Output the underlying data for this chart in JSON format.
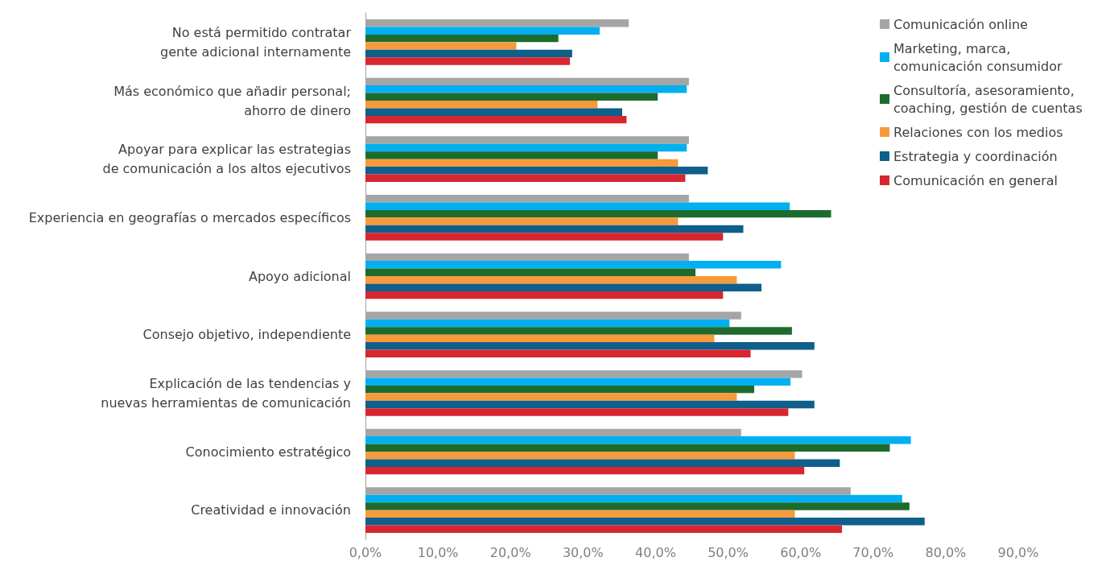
{
  "chart_data": {
    "type": "bar",
    "orientation": "horizontal",
    "categories": [
      "No está permitido contratar\ngente adicional internamente",
      "Más económico que añadir personal;\nahorro de dinero",
      "Apoyar para explicar las estrategias\nde comunicación a los altos ejecutivos",
      "Experiencia en geografías o mercados específicos",
      "Apoyo adicional",
      "Consejo objetivo, independiente",
      "Explicación de las tendencias y\nnuevas herramientas de comunicación",
      "Conocimiento estratégico",
      "Creatividad e innovación"
    ],
    "series": [
      {
        "name": "Comunicación online",
        "color": "#a5a5a5",
        "values": [
          36.3,
          44.6,
          44.6,
          44.6,
          44.6,
          51.8,
          60.2,
          51.8,
          66.9
        ]
      },
      {
        "name": "Marketing, marca, comunicación consumidor",
        "color": "#00b0f0",
        "values": [
          32.3,
          44.3,
          44.3,
          58.5,
          57.3,
          50.2,
          58.6,
          75.2,
          74.0
        ]
      },
      {
        "name": "Consultoría, asesoramiento, coaching, gestión de cuentas",
        "color": "#1e6b2e",
        "values": [
          26.6,
          40.3,
          40.3,
          64.2,
          45.5,
          58.8,
          53.6,
          72.3,
          75.0
        ]
      },
      {
        "name": "Relaciones con los medios",
        "color": "#f79a3c",
        "values": [
          20.8,
          32.0,
          43.1,
          43.1,
          51.2,
          48.1,
          51.2,
          59.2,
          59.2
        ]
      },
      {
        "name": "Estrategia y coordinación",
        "color": "#0e5f8c",
        "values": [
          28.5,
          35.4,
          47.2,
          52.1,
          54.6,
          61.9,
          61.9,
          65.4,
          77.1
        ]
      },
      {
        "name": "Comunicación en general",
        "color": "#d7262f",
        "values": [
          28.2,
          36.0,
          44.1,
          49.3,
          49.3,
          53.1,
          58.3,
          60.5,
          65.7
        ]
      }
    ],
    "xlim": [
      0,
      90
    ],
    "xticks": [
      {
        "value": 0,
        "label": "0,0%"
      },
      {
        "value": 10,
        "label": "10,0%"
      },
      {
        "value": 20,
        "label": "20,0%"
      },
      {
        "value": 30,
        "label": "30,0%"
      },
      {
        "value": 40,
        "label": "40,0%"
      },
      {
        "value": 50,
        "label": "50,0%"
      },
      {
        "value": 60,
        "label": "60,0%"
      },
      {
        "value": 70,
        "label": "70,0%"
      },
      {
        "value": 80,
        "label": "80,0%"
      },
      {
        "value": 90,
        "label": "90,0%"
      }
    ],
    "grid": false,
    "legend": "top right"
  }
}
